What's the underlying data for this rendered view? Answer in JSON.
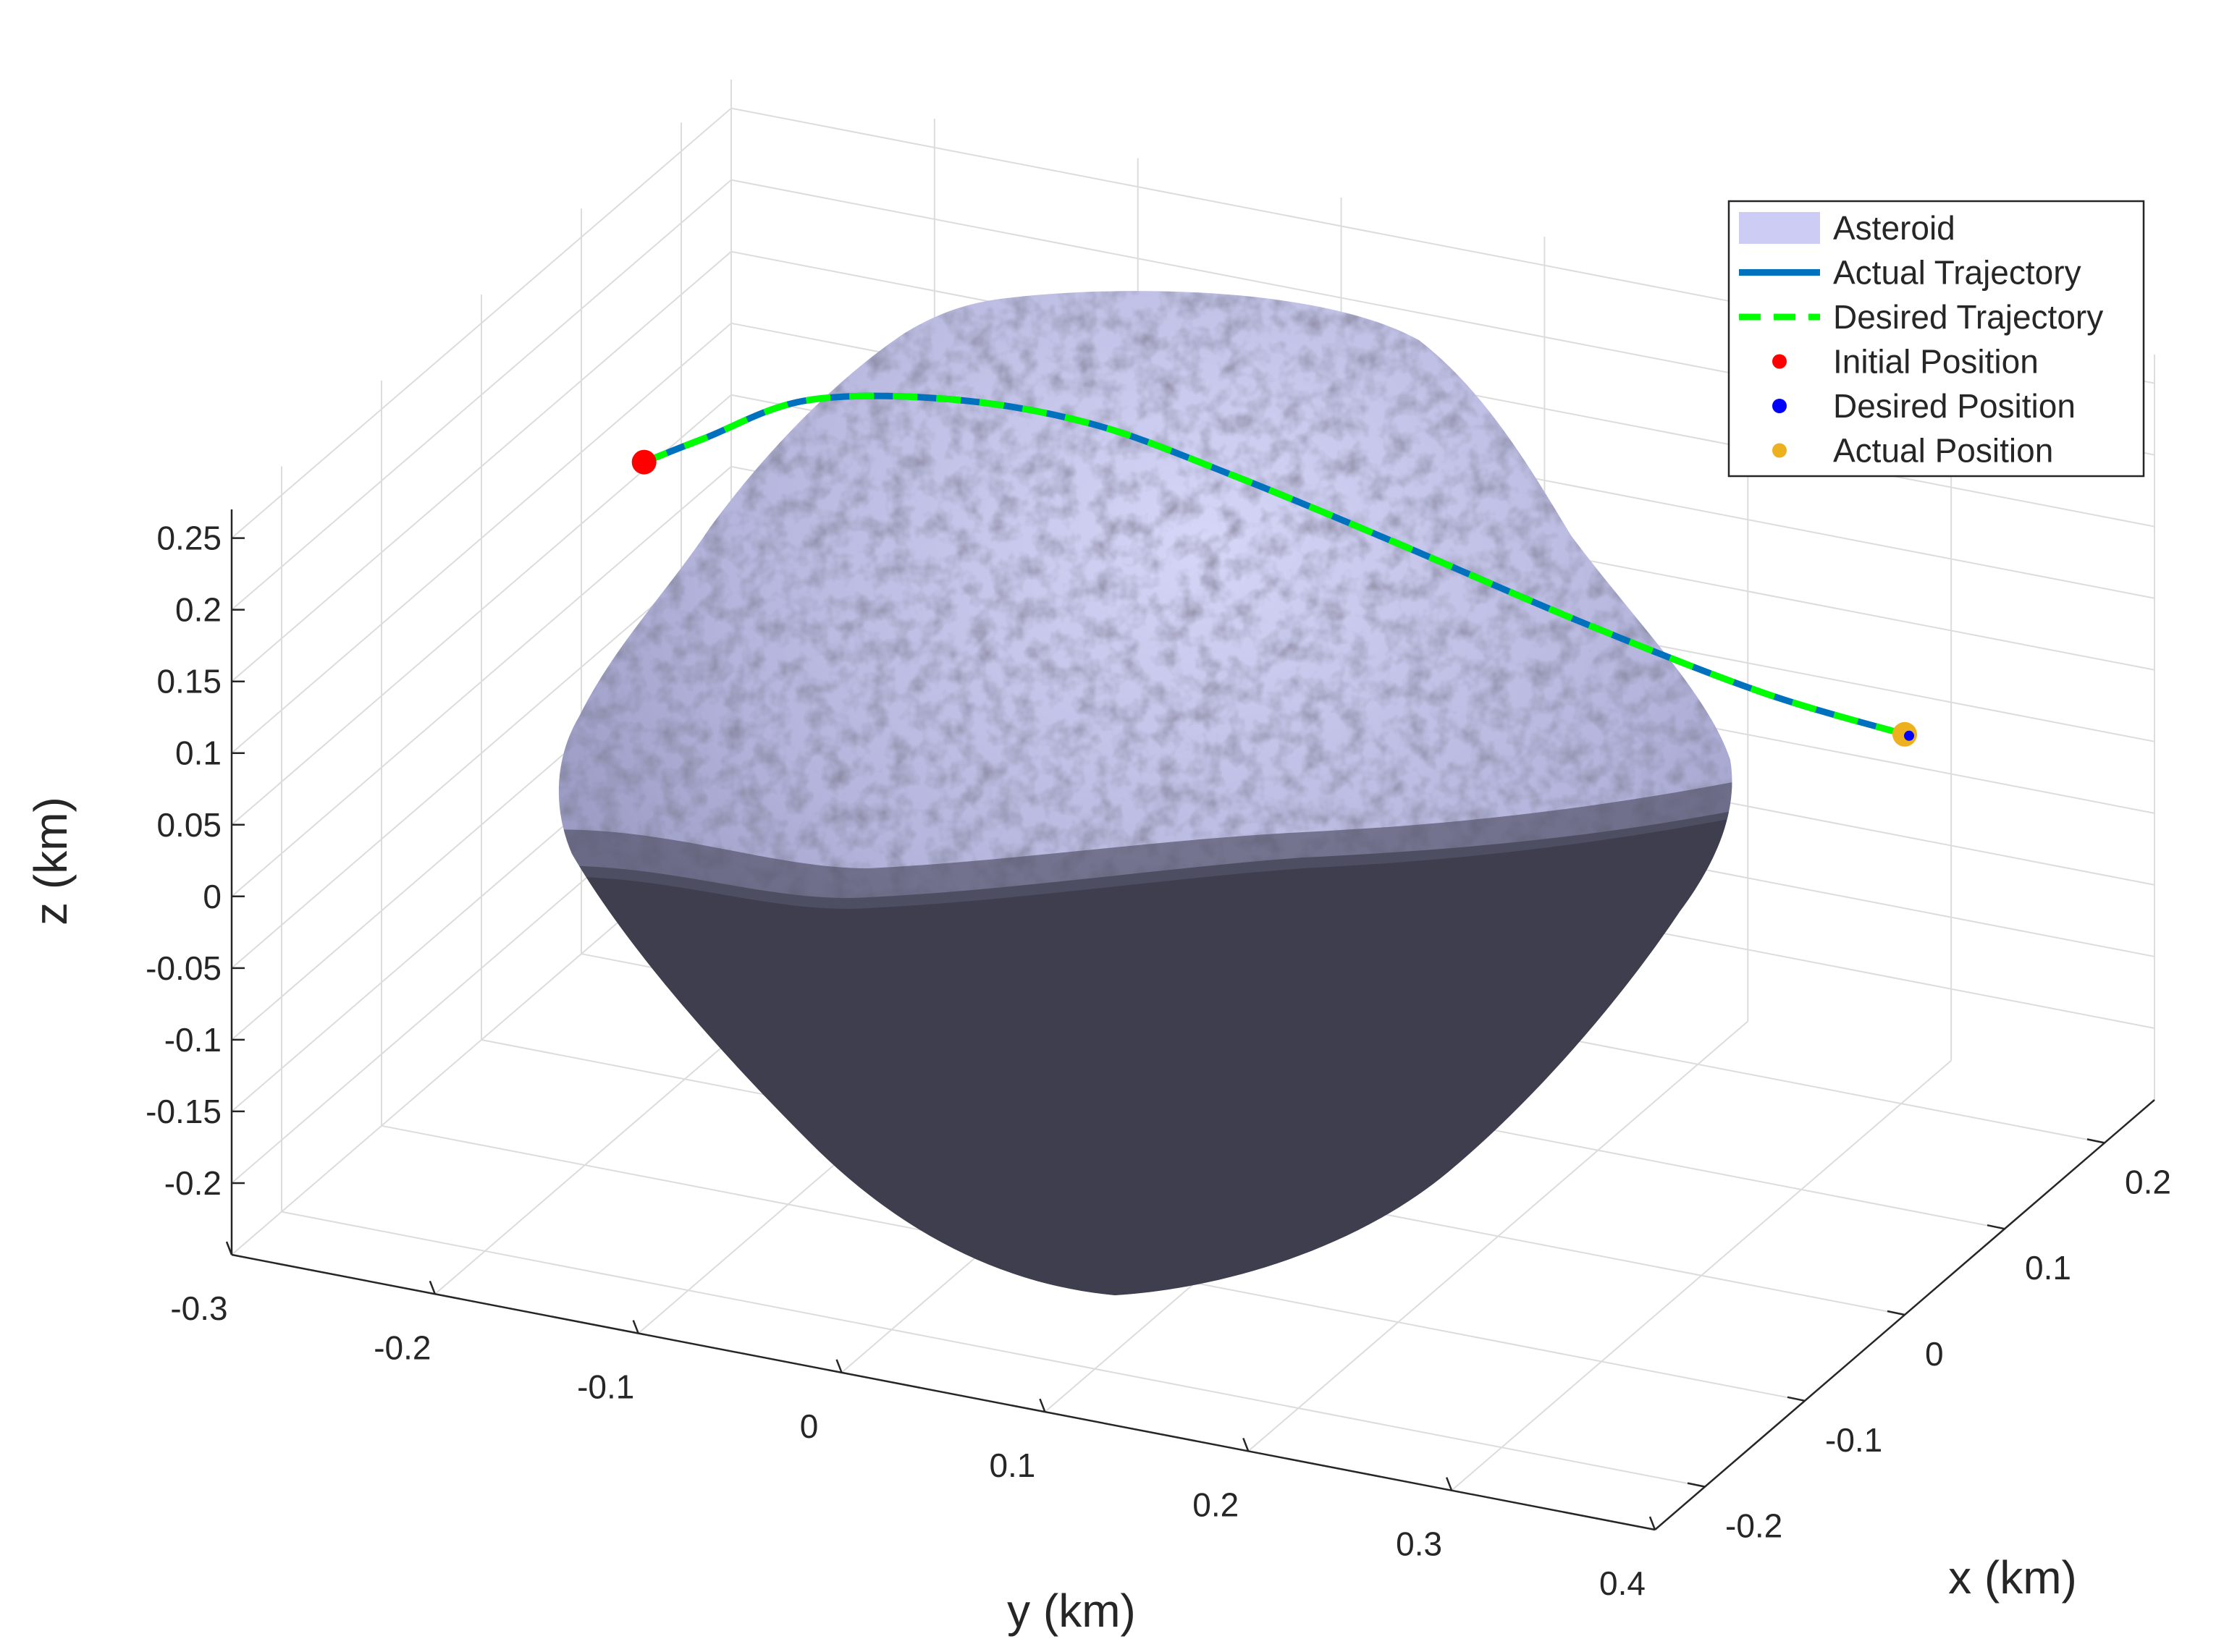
{
  "chart_data": {
    "type": "3d-line",
    "xlabel": "x (km)",
    "ylabel": "y (km)",
    "zlabel": "z (km)",
    "x_ticks": [
      "-0.2",
      "-0.1",
      "0",
      "0.1",
      "0.2"
    ],
    "y_ticks": [
      "-0.3",
      "-0.2",
      "-0.1",
      "0",
      "0.1",
      "0.2",
      "0.3",
      "0.4"
    ],
    "z_ticks": [
      "0.25",
      "0.2",
      "0.15",
      "0.1",
      "0.05",
      "0",
      "-0.05",
      "-0.1",
      "-0.15",
      "-0.2"
    ],
    "xlim": [
      -0.25,
      0.25
    ],
    "ylim": [
      -0.3,
      0.4
    ],
    "zlim": [
      -0.25,
      0.27
    ],
    "grid": true,
    "legend_position": "top-right",
    "legend": [
      {
        "label": "Asteroid",
        "marker": "patch",
        "color": "#ccccf5"
      },
      {
        "label": "Actual Trajectory",
        "marker": "line",
        "color": "#0072bd"
      },
      {
        "label": "Desired Trajectory",
        "marker": "dashed-line",
        "color": "#00ff00"
      },
      {
        "label": "Initial Position",
        "marker": "dot",
        "color": "#ff0000"
      },
      {
        "label": "Desired Position",
        "marker": "dot",
        "color": "#0000ff"
      },
      {
        "label": "Actual Position",
        "marker": "dot",
        "color": "#edb120"
      }
    ],
    "trajectory_points": [
      {
        "x": 0.0,
        "y": -0.22,
        "z": 0.175
      },
      {
        "x": 0.0,
        "y": -0.19,
        "z": 0.2
      },
      {
        "x": 0.0,
        "y": -0.14,
        "z": 0.24
      },
      {
        "x": 0.0,
        "y": -0.07,
        "z": 0.26
      },
      {
        "x": 0.0,
        "y": 0.0,
        "z": 0.262
      },
      {
        "x": 0.0,
        "y": 0.07,
        "z": 0.245
      },
      {
        "x": 0.0,
        "y": 0.15,
        "z": 0.22
      },
      {
        "x": 0.0,
        "y": 0.24,
        "z": 0.19
      },
      {
        "x": 0.0,
        "y": 0.33,
        "z": 0.165
      },
      {
        "x": 0.0,
        "y": 0.4,
        "z": 0.155
      }
    ],
    "initial_position": {
      "x": 0.0,
      "y": -0.22,
      "z": 0.175
    },
    "desired_position": {
      "x": 0.0,
      "y": 0.4,
      "z": 0.155
    },
    "actual_position": {
      "x": 0.0,
      "y": 0.4,
      "z": 0.155
    }
  }
}
